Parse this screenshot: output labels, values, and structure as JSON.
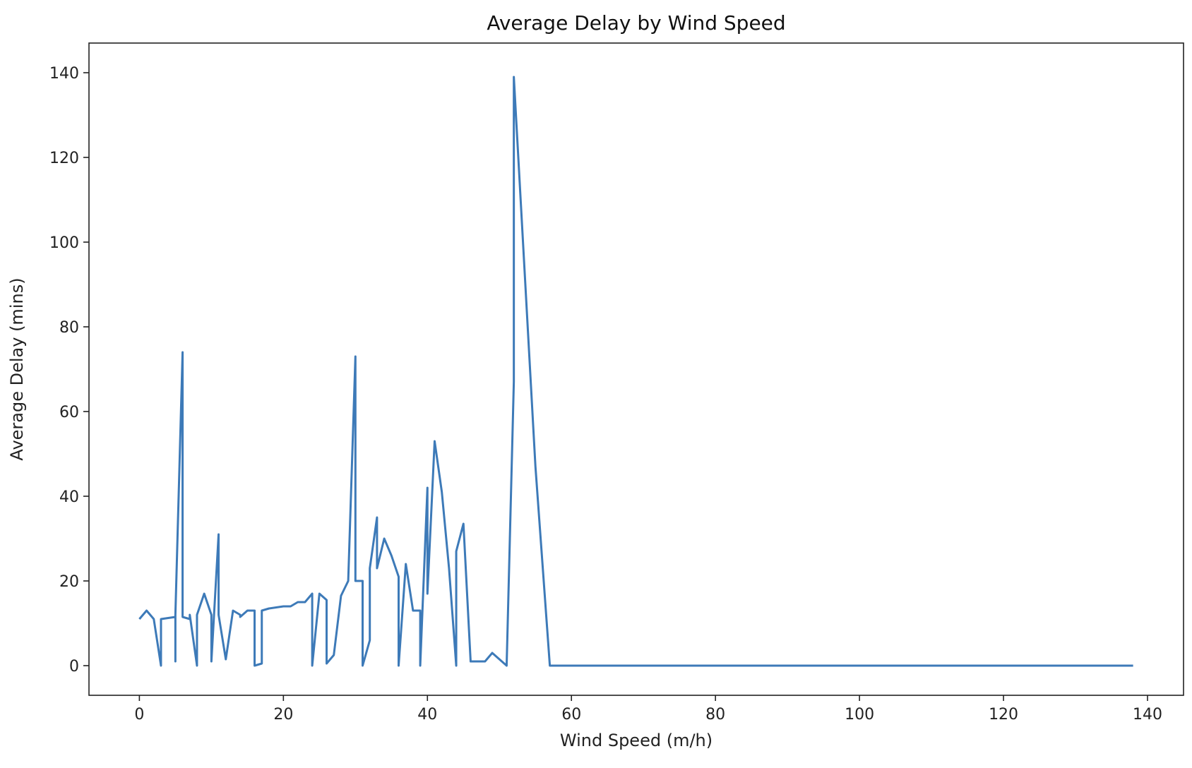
{
  "chart_data": {
    "type": "line",
    "title": "Average Delay by Wind Speed",
    "xlabel": "Wind Speed (m/h)",
    "ylabel": "Average Delay (mins)",
    "xlim": [
      -7,
      145
    ],
    "ylim": [
      -7,
      147
    ],
    "xticks": [
      0,
      20,
      40,
      60,
      80,
      100,
      120,
      140
    ],
    "yticks": [
      0,
      20,
      40,
      60,
      80,
      100,
      120,
      140
    ],
    "grid": false,
    "colors": {
      "line": "#3d7ab8",
      "axes": "#222222"
    },
    "series": [
      {
        "x": [
          0,
          1,
          2,
          3,
          3,
          5,
          5,
          5,
          6,
          6,
          7,
          7,
          8,
          8,
          9,
          10,
          10,
          11,
          11,
          12,
          13,
          14,
          14,
          15,
          16,
          16,
          17,
          17,
          18,
          20,
          21,
          22,
          23,
          24,
          24,
          25,
          26,
          26,
          27,
          28,
          29,
          30,
          30,
          31,
          31,
          32,
          32,
          33,
          33,
          34,
          35,
          36,
          36,
          37,
          38,
          39,
          39,
          40,
          40,
          41,
          42,
          43,
          44,
          44,
          45,
          46,
          47,
          48,
          49,
          51,
          52,
          52,
          55,
          57,
          60,
          80,
          100,
          120,
          138
        ],
        "y": [
          11,
          13,
          11,
          0,
          11,
          11.5,
          1,
          12,
          74,
          11.5,
          11,
          12,
          0,
          12,
          17,
          12,
          1,
          31,
          12,
          1.5,
          13,
          12,
          11.5,
          13,
          13,
          0,
          0.5,
          13,
          13.5,
          14,
          14,
          15,
          15,
          17,
          0,
          17,
          15.5,
          0.5,
          2.5,
          16.5,
          20,
          73,
          20,
          20,
          0,
          6,
          23,
          35,
          23,
          30,
          26,
          21,
          0,
          24,
          13,
          13,
          0,
          42,
          17,
          53,
          41,
          23,
          0,
          27,
          33.5,
          1,
          1,
          1,
          3,
          0,
          67,
          139,
          47,
          0,
          0,
          0,
          0,
          0,
          0
        ]
      }
    ]
  }
}
